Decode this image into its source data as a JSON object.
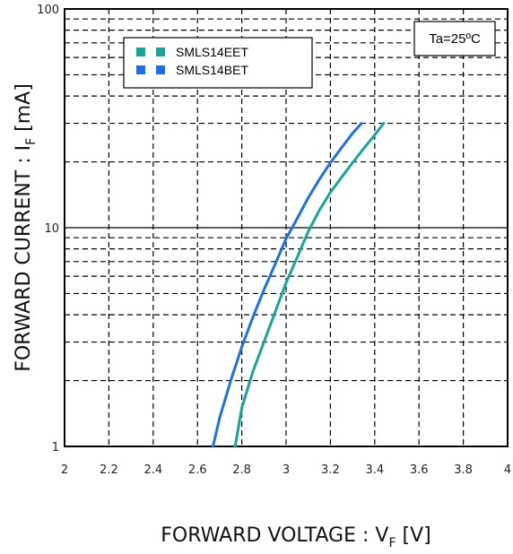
{
  "chart_data": {
    "type": "line",
    "xlabel": "FORWARD VOLTAGE : V",
    "xlabel_sub": "F",
    "xlabel_unit": " [V]",
    "ylabel": "FORWARD CURRENT : I",
    "ylabel_sub": "F",
    "ylabel_unit": " [mA]",
    "xlim": [
      2,
      4
    ],
    "ylim": [
      1,
      100
    ],
    "y_scale": "log",
    "x_ticks": [
      2,
      2.2,
      2.4,
      2.6,
      2.8,
      3,
      3.2,
      3.4,
      3.6,
      3.8,
      4
    ],
    "x_tick_labels": [
      "2",
      "2.2",
      "2.4",
      "2.6",
      "2.8",
      "3",
      "3.2",
      "3.4",
      "3.6",
      "3.8",
      "4"
    ],
    "y_tick_labels": [
      "1",
      "10",
      "100"
    ],
    "grid": "dashed",
    "annotation": "Ta=25ºC",
    "legend_position": "top-left",
    "series": [
      {
        "name": "SMLS14EET",
        "color": "#17a598",
        "x": [
          2.77,
          2.8,
          2.85,
          2.9,
          2.95,
          3.0,
          3.05,
          3.1,
          3.15,
          3.2,
          3.25,
          3.3,
          3.35,
          3.4,
          3.44
        ],
        "y": [
          1.0,
          1.5,
          2.2,
          3.0,
          4.1,
          5.6,
          7.3,
          9.6,
          12.0,
          14.5,
          17.0,
          19.8,
          23.0,
          26.5,
          30.0
        ]
      },
      {
        "name": "SMLS14BET",
        "color": "#1f6fe0",
        "x": [
          2.67,
          2.7,
          2.75,
          2.8,
          2.85,
          2.9,
          2.95,
          3.0,
          3.05,
          3.1,
          3.15,
          3.2,
          3.25,
          3.3,
          3.34
        ],
        "y": [
          1.0,
          1.35,
          2.0,
          2.85,
          3.9,
          5.2,
          6.8,
          8.9,
          11.0,
          13.7,
          16.6,
          19.8,
          23.2,
          27.0,
          30.0
        ]
      }
    ]
  }
}
